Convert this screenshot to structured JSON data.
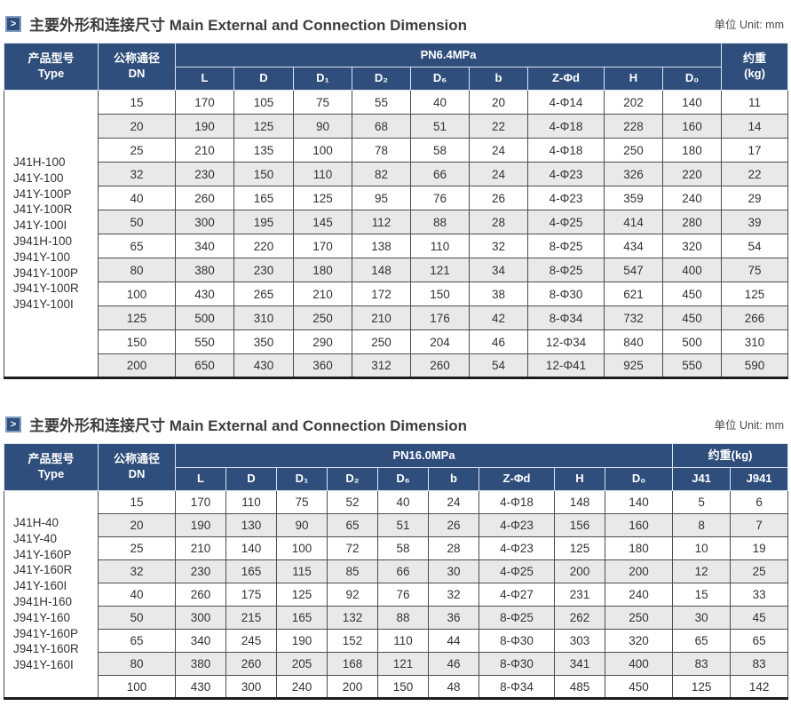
{
  "colors": {
    "header_navy": "#2f4e7c",
    "row_alt_gray": "#e9e9e9",
    "grid_line": "#4d4d4d",
    "bottom_rule": "#1c1c1c"
  },
  "tables": [
    {
      "section_title_zh": "主要外形和连接尺寸",
      "section_title_en": "Main External and Connection Dimension",
      "unit_label": "单位 Unit: mm",
      "columns": {
        "type_zh": "产品型号",
        "type_en": "Type",
        "dn_zh": "公称通径",
        "dn_en": "DN",
        "pressure_group": "PN6.4MPa",
        "dims": [
          "L",
          "D",
          "D₁",
          "D₂",
          "D₆",
          "b",
          "Z-Φd",
          "H",
          "D₀"
        ],
        "weight_zh": "约重",
        "weight_unit": "(kg)"
      },
      "type_groups": [
        [
          "J41H-100",
          "J41Y-100"
        ],
        [
          "J41Y-100P",
          "J41Y-100R",
          "J41Y-100I"
        ],
        [
          "J941H-100",
          "J941Y-100"
        ],
        [
          "J941Y-100P",
          "J941Y-100R",
          "J941Y-100I"
        ]
      ],
      "rows": [
        [
          "15",
          "170",
          "105",
          "75",
          "55",
          "40",
          "20",
          "4-Φ14",
          "202",
          "140",
          "11"
        ],
        [
          "20",
          "190",
          "125",
          "90",
          "68",
          "51",
          "22",
          "4-Φ18",
          "228",
          "160",
          "14"
        ],
        [
          "25",
          "210",
          "135",
          "100",
          "78",
          "58",
          "24",
          "4-Φ18",
          "250",
          "180",
          "17"
        ],
        [
          "32",
          "230",
          "150",
          "110",
          "82",
          "66",
          "24",
          "4-Φ23",
          "326",
          "220",
          "22"
        ],
        [
          "40",
          "260",
          "165",
          "125",
          "95",
          "76",
          "26",
          "4-Φ23",
          "359",
          "240",
          "29"
        ],
        [
          "50",
          "300",
          "195",
          "145",
          "112",
          "88",
          "28",
          "4-Φ25",
          "414",
          "280",
          "39"
        ],
        [
          "65",
          "340",
          "220",
          "170",
          "138",
          "110",
          "32",
          "8-Φ25",
          "434",
          "320",
          "54"
        ],
        [
          "80",
          "380",
          "230",
          "180",
          "148",
          "121",
          "34",
          "8-Φ25",
          "547",
          "400",
          "75"
        ],
        [
          "100",
          "430",
          "265",
          "210",
          "172",
          "150",
          "38",
          "8-Φ30",
          "621",
          "450",
          "125"
        ],
        [
          "125",
          "500",
          "310",
          "250",
          "210",
          "176",
          "42",
          "8-Φ34",
          "732",
          "450",
          "266"
        ],
        [
          "150",
          "550",
          "350",
          "290",
          "250",
          "204",
          "46",
          "12-Φ34",
          "840",
          "500",
          "310"
        ],
        [
          "200",
          "650",
          "430",
          "360",
          "312",
          "260",
          "54",
          "12-Φ41",
          "925",
          "550",
          "590"
        ]
      ]
    },
    {
      "section_title_zh": "主要外形和连接尺寸",
      "section_title_en": "Main External and Connection Dimension",
      "unit_label": "单位 Unit: mm",
      "columns": {
        "type_zh": "产品型号",
        "type_en": "Type",
        "dn_zh": "公称通径",
        "dn_en": "DN",
        "pressure_group": "PN16.0MPa",
        "dims": [
          "L",
          "D",
          "D₁",
          "D₂",
          "D₆",
          "b",
          "Z-Φd",
          "H",
          "D₀"
        ],
        "weight_label": "约重(kg)",
        "weight_sub": [
          "J41",
          "J941"
        ]
      },
      "type_groups": [
        [
          "J41H-40",
          "J41Y-40"
        ],
        [
          "J41Y-160P",
          "J41Y-160R",
          "J41Y-160I"
        ],
        [
          "J941H-160",
          "J941Y-160"
        ],
        [
          "J941Y-160P",
          "J941Y-160R",
          "J941Y-160I"
        ]
      ],
      "rows": [
        [
          "15",
          "170",
          "110",
          "75",
          "52",
          "40",
          "24",
          "4-Φ18",
          "148",
          "140",
          "5",
          "6"
        ],
        [
          "20",
          "190",
          "130",
          "90",
          "65",
          "51",
          "26",
          "4-Φ23",
          "156",
          "160",
          "8",
          "7"
        ],
        [
          "25",
          "210",
          "140",
          "100",
          "72",
          "58",
          "28",
          "4-Φ23",
          "125",
          "180",
          "10",
          "19"
        ],
        [
          "32",
          "230",
          "165",
          "115",
          "85",
          "66",
          "30",
          "4-Φ25",
          "200",
          "200",
          "12",
          "25"
        ],
        [
          "40",
          "260",
          "175",
          "125",
          "92",
          "76",
          "32",
          "4-Φ27",
          "231",
          "240",
          "15",
          "33"
        ],
        [
          "50",
          "300",
          "215",
          "165",
          "132",
          "88",
          "36",
          "8-Φ25",
          "262",
          "250",
          "30",
          "45"
        ],
        [
          "65",
          "340",
          "245",
          "190",
          "152",
          "110",
          "44",
          "8-Φ30",
          "303",
          "320",
          "65",
          "65"
        ],
        [
          "80",
          "380",
          "260",
          "205",
          "168",
          "121",
          "46",
          "8-Φ30",
          "341",
          "400",
          "83",
          "83"
        ],
        [
          "100",
          "430",
          "300",
          "240",
          "200",
          "150",
          "48",
          "8-Φ34",
          "485",
          "450",
          "125",
          "142"
        ]
      ]
    }
  ]
}
